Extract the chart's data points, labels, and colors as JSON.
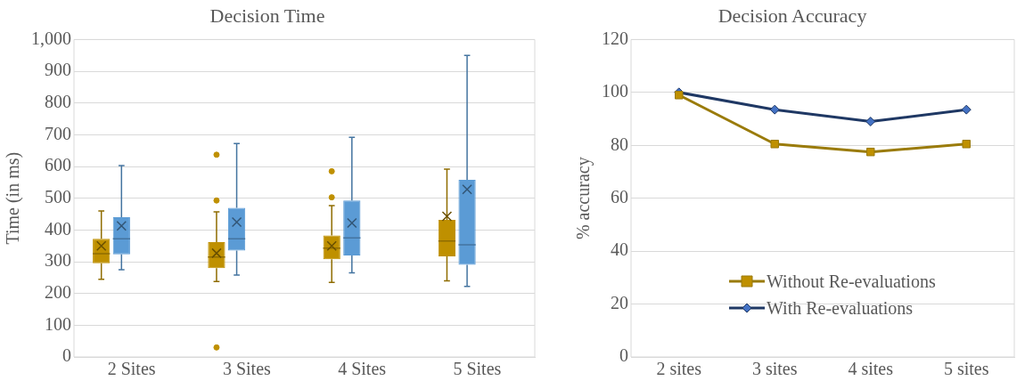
{
  "chart_data": [
    {
      "type": "box",
      "title": "Decision Time",
      "ylabel": "Time (in ms)",
      "categories": [
        "2 Sites",
        "3 Sites",
        "4 Sites",
        "5 Sites"
      ],
      "series": [
        {
          "color": "#bf9000",
          "boxes": [
            {
              "low": 245,
              "q1": 295,
              "median": 325,
              "q3": 372,
              "high": 460,
              "mean": 350
            },
            {
              "low": 238,
              "q1": 280,
              "median": 315,
              "q3": 362,
              "high": 457,
              "mean": 327,
              "outliers": [
                30,
                493,
                637
              ]
            },
            {
              "low": 235,
              "q1": 308,
              "median": 343,
              "q3": 383,
              "high": 477,
              "mean": 350,
              "outliers": [
                503,
                585
              ]
            },
            {
              "low": 240,
              "q1": 317,
              "median": 365,
              "q3": 432,
              "high": 592,
              "mean": 443
            }
          ]
        },
        {
          "color": "#5b9bd5",
          "boxes": [
            {
              "low": 275,
              "q1": 323,
              "median": 372,
              "q3": 440,
              "high": 603,
              "mean": 413
            },
            {
              "low": 258,
              "q1": 335,
              "median": 372,
              "q3": 470,
              "high": 672,
              "mean": 425
            },
            {
              "low": 265,
              "q1": 320,
              "median": 375,
              "q3": 493,
              "high": 692,
              "mean": 422
            },
            {
              "low": 222,
              "q1": 290,
              "median": 353,
              "q3": 558,
              "high": 950,
              "mean": 528
            }
          ]
        }
      ],
      "ylim": [
        0,
        1000
      ],
      "yticks": [
        0,
        100,
        200,
        300,
        400,
        500,
        600,
        700,
        800,
        900,
        {
          "value": 1000,
          "label": "1,000"
        }
      ],
      "grid": "y",
      "legend": false
    },
    {
      "type": "line",
      "title": "Decision Accuracy",
      "ylabel": "% accuracy",
      "categories": [
        "2 sites",
        "3 sites",
        "4 sites",
        "5 sites"
      ],
      "series": [
        {
          "name": "Without Re-evaluations",
          "color": "#9a7b0a",
          "marker": "square",
          "values": [
            99,
            80.5,
            77.5,
            80.5
          ]
        },
        {
          "name": "With Re-evaluations",
          "color": "#1f3864",
          "marker": "diamond",
          "values": [
            100,
            93.5,
            89,
            93.5
          ]
        }
      ],
      "ylim": [
        0,
        120
      ],
      "yticks": [
        0,
        20,
        40,
        60,
        80,
        100,
        120
      ],
      "grid": "y",
      "legend": "bottom right",
      "line_style": "solid"
    }
  ]
}
